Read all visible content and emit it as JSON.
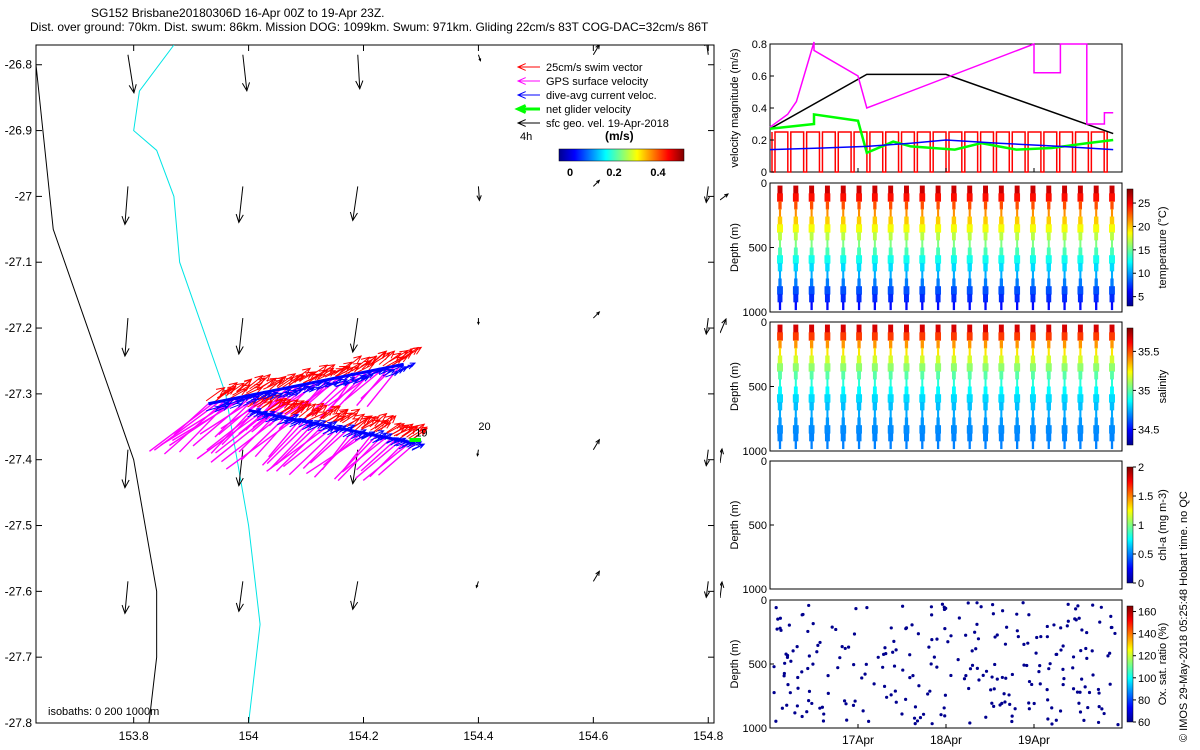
{
  "title_line1": "SG152 Brisbane20180306D 16-Apr 00Z to 19-Apr 23Z.",
  "title_line2": "Dist. over ground: 70km. Dist. swum: 86km. Mission DOG: 1099km. Swum: 971km. Gliding 22cm/s 83T COG-DAC=32cm/s 86T",
  "credit": "© IMOS 29-May-2018 05:25:48 Hobart time. no QC",
  "map": {
    "legend": [
      {
        "label": "25cm/s swim vector",
        "color": "#ff0000"
      },
      {
        "label": "GPS surface velocity",
        "color": "#ff00ff"
      },
      {
        "label": "dive-avg current veloc.",
        "color": "#0000ff"
      },
      {
        "label": "net glider velocity",
        "color": "#00ff00"
      },
      {
        "label": "sfc geo. vel. 19-Apr-2018",
        "color": "#000000"
      }
    ],
    "scale_label": "4h",
    "colorbar_title": "(m/s)",
    "colorbar_ticks": [
      "0",
      "0.2",
      "0.4"
    ],
    "isobath_label": "isobaths: 0   200  1000m",
    "x_ticks": [
      "153.8",
      "154",
      "154.2",
      "154.4",
      "154.6",
      "154.8"
    ],
    "y_ticks": [
      "-26.8",
      "-26.9",
      "-27",
      "-27.1",
      "-27.2",
      "-27.3",
      "-27.4",
      "-27.5",
      "-27.6",
      "-27.7",
      "-27.8"
    ],
    "annotation_19": "19",
    "annotation_20": "20"
  },
  "chart_data": [
    {
      "type": "line",
      "ylabel": "velocity magnitude (m/s)",
      "ylim": [
        0,
        0.8
      ],
      "y_ticks": [
        "0",
        "0.2",
        "0.4",
        "0.6",
        "0.8"
      ],
      "series": [
        {
          "color": "#000000",
          "x": [
            16.0,
            17.1,
            18.0,
            19.9
          ],
          "values": [
            0.27,
            0.61,
            0.61,
            0.24
          ]
        },
        {
          "color": "#ff00ff",
          "x": [
            16.0,
            16.2,
            16.3,
            16.5,
            16.5,
            17.0,
            17.1,
            19.0,
            19.0,
            19.3,
            19.3,
            19.6,
            19.6,
            19.8,
            19.8,
            19.9
          ],
          "values": [
            0.28,
            0.36,
            0.44,
            0.84,
            0.76,
            0.6,
            0.4,
            0.8,
            0.62,
            0.62,
            0.8,
            0.8,
            0.3,
            0.3,
            0.37,
            0.37
          ]
        },
        {
          "color": "#00ff00",
          "x": [
            16.0,
            16.5,
            16.5,
            17.0,
            17.1,
            17.4,
            17.6,
            18.1,
            18.4,
            18.8,
            19.2,
            19.6,
            19.9
          ],
          "values": [
            0.27,
            0.3,
            0.36,
            0.32,
            0.12,
            0.19,
            0.16,
            0.14,
            0.18,
            0.14,
            0.15,
            0.18,
            0.2
          ]
        },
        {
          "color": "#0000ff",
          "x": [
            16.0,
            16.6,
            17.1,
            17.6,
            18.0,
            18.6,
            19.3,
            19.9
          ],
          "values": [
            0.14,
            0.15,
            0.16,
            0.18,
            0.2,
            0.18,
            0.16,
            0.14
          ]
        },
        {
          "color": "#ff0000",
          "x": [
            16.0,
            19.9
          ],
          "values": [
            0.25,
            0.25
          ]
        }
      ]
    },
    {
      "type": "heatmap",
      "ylabel": "Depth (m)",
      "y_ticks": [
        "0",
        "500",
        "1000"
      ],
      "colorbar_label": "temperature (°C)",
      "colorbar_ticks": [
        "5",
        "10",
        "15",
        "20",
        "25"
      ],
      "range": [
        3,
        28
      ],
      "dives": 22
    },
    {
      "type": "heatmap",
      "ylabel": "Depth (m)",
      "y_ticks": [
        "0",
        "500",
        "1000"
      ],
      "colorbar_label": "salinity",
      "colorbar_ticks": [
        "34.5",
        "35",
        "35.5"
      ],
      "range": [
        34.3,
        35.8
      ],
      "dives": 22
    },
    {
      "type": "heatmap",
      "ylabel": "Depth (m)",
      "y_ticks": [
        "0",
        "500",
        "1000"
      ],
      "colorbar_label": "chl-a (mg m-3)",
      "colorbar_ticks": [
        "0",
        "0.5",
        "1",
        "1.5",
        "2"
      ],
      "range": [
        0,
        2
      ],
      "dives": 0
    },
    {
      "type": "scatter",
      "ylabel": "Depth (m)",
      "y_ticks": [
        "0",
        "500",
        "1000"
      ],
      "colorbar_label": "Ox. sat. ratio (%)",
      "colorbar_ticks": [
        "60",
        "80",
        "100",
        "120",
        "140",
        "160"
      ],
      "range": [
        60,
        165
      ],
      "x_ticks": [
        "17Apr",
        "18Apr",
        "19Apr"
      ]
    }
  ]
}
